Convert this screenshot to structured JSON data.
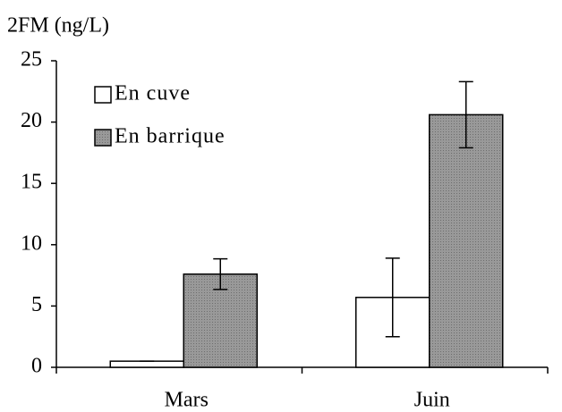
{
  "chart_data": {
    "type": "bar",
    "title": "2FM (ng/L)",
    "categories": [
      "Mars",
      "Juin"
    ],
    "series": [
      {
        "name": "En cuve",
        "color": "#ffffff",
        "values": [
          0.5,
          5.7
        ],
        "errors": [
          0,
          3.2
        ]
      },
      {
        "name": "En barrique",
        "color": "#999999",
        "values": [
          7.6,
          20.6
        ],
        "errors": [
          1.25,
          2.7
        ]
      }
    ],
    "ylim": [
      0,
      25
    ],
    "yticks": [
      0,
      5,
      10,
      15,
      20,
      25
    ],
    "grid": false,
    "legend": "top-left"
  }
}
